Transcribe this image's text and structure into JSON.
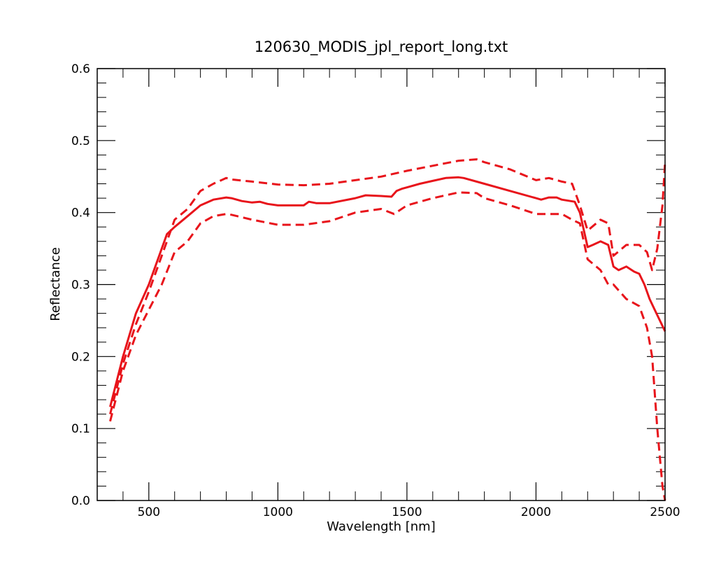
{
  "chart_data": {
    "type": "line",
    "title": "120630_MODIS_jpl_report_long.txt",
    "xlabel": "Wavelength [nm]",
    "ylabel": "Reflectance",
    "xlim": [
      300,
      2500
    ],
    "ylim": [
      0.0,
      0.6
    ],
    "x_ticks": [
      500,
      1000,
      1500,
      2000,
      2500
    ],
    "x_tick_labels": [
      "500",
      "1000",
      "1500",
      "2000",
      "2500"
    ],
    "y_ticks": [
      0.0,
      0.1,
      0.2,
      0.3,
      0.4,
      0.5,
      0.6
    ],
    "y_tick_labels": [
      "0.0",
      "0.1",
      "0.2",
      "0.3",
      "0.4",
      "0.5",
      "0.6"
    ],
    "grid": false,
    "legend": "none",
    "color": "#e8141b",
    "series": [
      {
        "style": "solid",
        "x": [
          350,
          400,
          450,
          500,
          540,
          570,
          600,
          650,
          700,
          750,
          800,
          820,
          860,
          900,
          930,
          960,
          1000,
          1050,
          1100,
          1120,
          1150,
          1200,
          1300,
          1340,
          1400,
          1440,
          1460,
          1480,
          1500,
          1550,
          1600,
          1650,
          1700,
          1720,
          1800,
          1900,
          2000,
          2020,
          2050,
          2080,
          2100,
          2150,
          2170,
          2200,
          2220,
          2250,
          2280,
          2300,
          2320,
          2350,
          2380,
          2400,
          2420,
          2440,
          2460,
          2480,
          2500
        ],
        "y": [
          0.13,
          0.2,
          0.26,
          0.3,
          0.34,
          0.37,
          0.38,
          0.395,
          0.41,
          0.418,
          0.421,
          0.42,
          0.416,
          0.414,
          0.415,
          0.412,
          0.41,
          0.41,
          0.41,
          0.415,
          0.413,
          0.413,
          0.42,
          0.424,
          0.423,
          0.422,
          0.43,
          0.433,
          0.435,
          0.44,
          0.444,
          0.448,
          0.449,
          0.448,
          0.44,
          0.43,
          0.42,
          0.418,
          0.421,
          0.421,
          0.418,
          0.415,
          0.4,
          0.352,
          0.355,
          0.36,
          0.355,
          0.325,
          0.32,
          0.325,
          0.318,
          0.315,
          0.3,
          0.28,
          0.265,
          0.25,
          0.235
        ]
      },
      {
        "style": "dashed",
        "x": [
          350,
          400,
          450,
          500,
          550,
          600,
          650,
          700,
          750,
          800,
          820,
          900,
          1000,
          1100,
          1200,
          1300,
          1400,
          1500,
          1600,
          1700,
          1770,
          1800,
          1900,
          2000,
          2050,
          2100,
          2140,
          2170,
          2200,
          2250,
          2280,
          2300,
          2350,
          2400,
          2430,
          2450,
          2470,
          2490,
          2500
        ],
        "y": [
          0.12,
          0.19,
          0.245,
          0.29,
          0.34,
          0.39,
          0.405,
          0.43,
          0.44,
          0.448,
          0.446,
          0.443,
          0.439,
          0.438,
          0.44,
          0.445,
          0.45,
          0.458,
          0.465,
          0.472,
          0.474,
          0.47,
          0.46,
          0.445,
          0.448,
          0.443,
          0.44,
          0.41,
          0.375,
          0.39,
          0.385,
          0.34,
          0.355,
          0.355,
          0.345,
          0.32,
          0.35,
          0.41,
          0.47
        ]
      },
      {
        "style": "dashed",
        "x": [
          350,
          400,
          450,
          500,
          550,
          600,
          650,
          700,
          750,
          800,
          820,
          900,
          1000,
          1100,
          1200,
          1300,
          1400,
          1450,
          1500,
          1600,
          1700,
          1770,
          1800,
          1900,
          2000,
          2050,
          2100,
          2140,
          2170,
          2200,
          2250,
          2280,
          2300,
          2350,
          2400,
          2430,
          2450,
          2470,
          2490,
          2500
        ],
        "y": [
          0.11,
          0.18,
          0.23,
          0.265,
          0.3,
          0.345,
          0.36,
          0.385,
          0.395,
          0.398,
          0.397,
          0.39,
          0.383,
          0.383,
          0.388,
          0.4,
          0.405,
          0.398,
          0.41,
          0.42,
          0.428,
          0.427,
          0.42,
          0.41,
          0.398,
          0.398,
          0.398,
          0.39,
          0.385,
          0.335,
          0.32,
          0.3,
          0.3,
          0.28,
          0.27,
          0.24,
          0.2,
          0.1,
          0.02,
          0.0
        ]
      }
    ]
  }
}
